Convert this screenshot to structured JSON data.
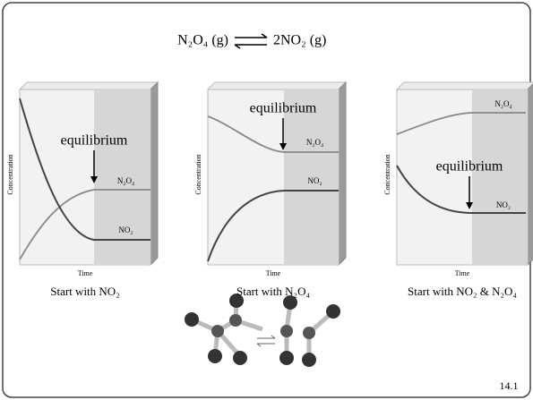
{
  "header": {
    "reactant": "N₂O₄ (g)",
    "product": "2NO₂ (g)"
  },
  "panels": [
    {
      "y_axis": "Concentration",
      "x_axis": "Time",
      "equilibrium": "equilibrium",
      "upper_label": "N₂O₄",
      "lower_label": "NO₂",
      "caption": "Start with NO₂"
    },
    {
      "y_axis": "Concentration",
      "x_axis": "Time",
      "equilibrium": "equilibrium",
      "upper_label": "N₂O₄",
      "lower_label": "NO₂",
      "caption": "Start with N₂O₄"
    },
    {
      "y_axis": "Concentration",
      "x_axis": "Time",
      "equilibrium": "equilibrium",
      "upper_label": "N₂O₄",
      "lower_label": "NO₂",
      "caption": "Start with NO₂ & N₂O₄"
    }
  ],
  "page_number": "14.1"
}
